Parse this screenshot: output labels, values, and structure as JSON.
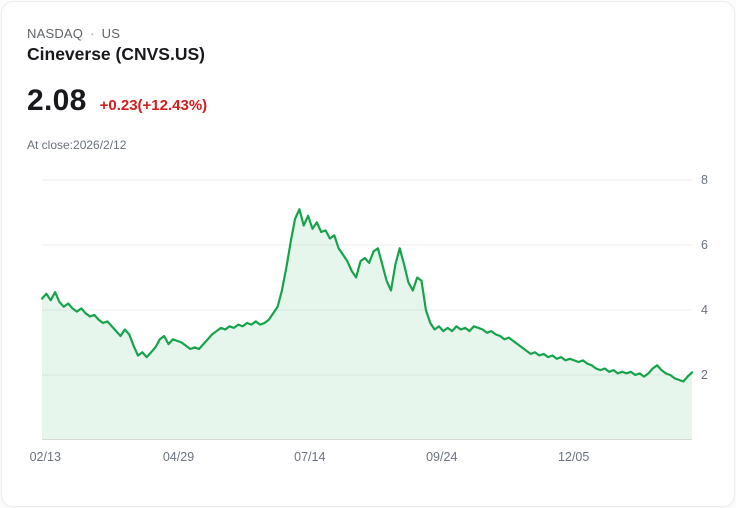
{
  "header": {
    "exchange": "NASDAQ",
    "separator": "·",
    "region": "US",
    "title": "Cineverse (CNVS.US)",
    "price": "2.08",
    "change": "+0.23(+12.43%)",
    "close_note": "At close:2026/2/12"
  },
  "colors": {
    "line": "#16a34a",
    "area_fill": "rgba(22,163,74,0.10)",
    "grid": "#ededed",
    "axis": "#d8d8d8",
    "tick_label": "#6b7280",
    "change_positive": "#cf1f1f"
  },
  "chart_data": {
    "type": "line",
    "ylim": [
      0,
      8
    ],
    "y_ticks": [
      2,
      4,
      6,
      8
    ],
    "x_tick_labels": [
      "02/13",
      "04/29",
      "07/14",
      "09/24",
      "12/05"
    ],
    "x_tick_positions": [
      0.005,
      0.21,
      0.412,
      0.615,
      0.818
    ],
    "grid": true,
    "legend": false,
    "series": [
      {
        "name": "CNVS.US",
        "values": [
          4.35,
          4.5,
          4.3,
          4.55,
          4.25,
          4.1,
          4.2,
          4.05,
          3.95,
          4.05,
          3.9,
          3.8,
          3.85,
          3.7,
          3.6,
          3.65,
          3.5,
          3.35,
          3.2,
          3.4,
          3.25,
          2.9,
          2.6,
          2.7,
          2.55,
          2.7,
          2.85,
          3.1,
          3.2,
          2.95,
          3.1,
          3.05,
          3.0,
          2.9,
          2.8,
          2.85,
          2.8,
          2.95,
          3.1,
          3.25,
          3.35,
          3.45,
          3.4,
          3.5,
          3.45,
          3.55,
          3.5,
          3.6,
          3.55,
          3.65,
          3.55,
          3.6,
          3.7,
          3.9,
          4.1,
          4.6,
          5.3,
          6.1,
          6.8,
          7.1,
          6.6,
          6.9,
          6.5,
          6.7,
          6.4,
          6.45,
          6.2,
          6.3,
          5.9,
          5.7,
          5.5,
          5.2,
          5.0,
          5.5,
          5.6,
          5.45,
          5.8,
          5.9,
          5.4,
          4.9,
          4.6,
          5.4,
          5.9,
          5.4,
          4.85,
          4.6,
          5.0,
          4.9,
          4.0,
          3.6,
          3.4,
          3.5,
          3.35,
          3.45,
          3.35,
          3.5,
          3.4,
          3.45,
          3.35,
          3.5,
          3.45,
          3.4,
          3.3,
          3.35,
          3.25,
          3.2,
          3.1,
          3.15,
          3.05,
          2.95,
          2.85,
          2.75,
          2.65,
          2.7,
          2.6,
          2.65,
          2.55,
          2.6,
          2.5,
          2.55,
          2.45,
          2.5,
          2.45,
          2.4,
          2.45,
          2.35,
          2.3,
          2.2,
          2.15,
          2.2,
          2.1,
          2.15,
          2.05,
          2.1,
          2.05,
          2.1,
          2.0,
          2.05,
          1.95,
          2.05,
          2.2,
          2.3,
          2.15,
          2.05,
          2.0,
          1.9,
          1.85,
          1.8,
          1.95,
          2.08
        ]
      }
    ]
  }
}
